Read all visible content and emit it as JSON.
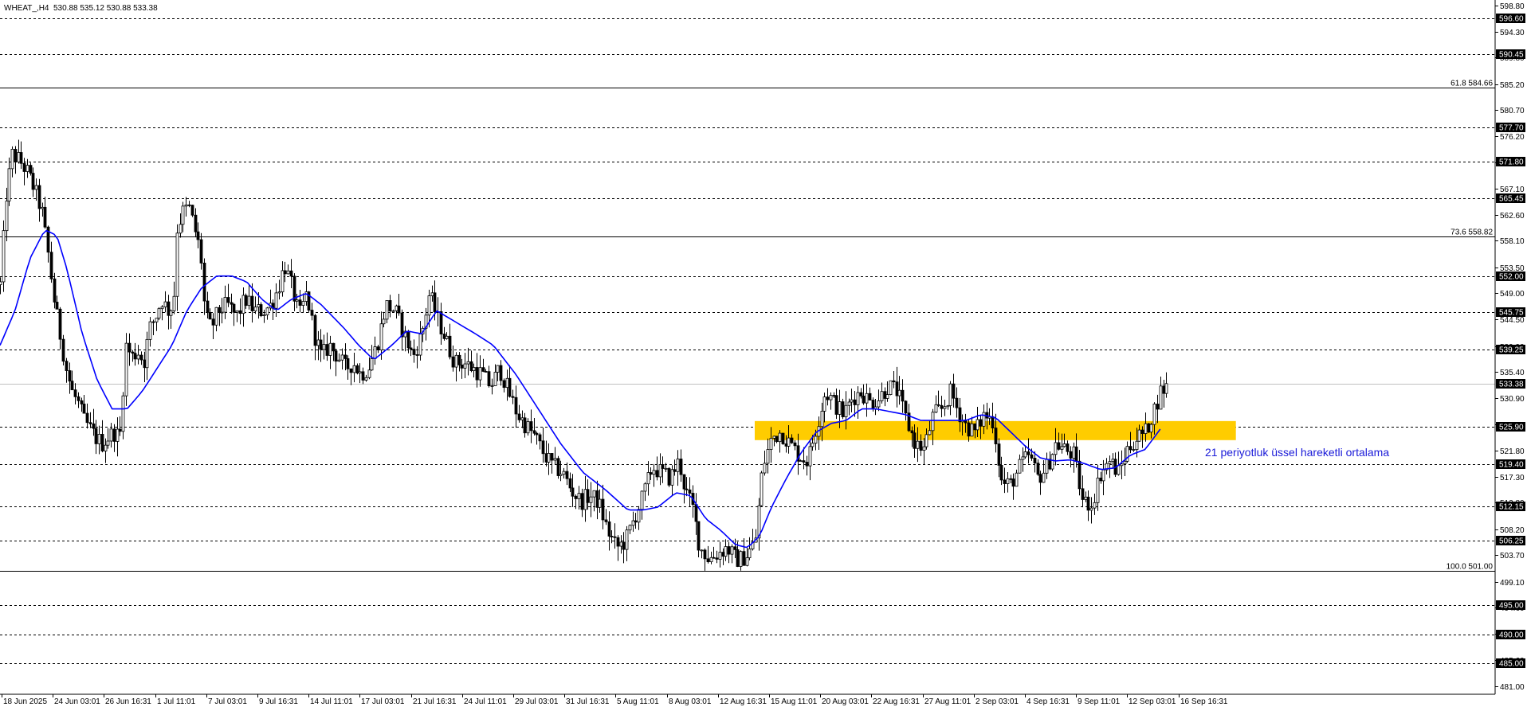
{
  "header": {
    "symbol": "WHEAT_,H4",
    "ohlc": "530.88 535.12 530.88 533.38"
  },
  "colors": {
    "background": "#ffffff",
    "grid": "#000000",
    "ema_line": "#0000ff",
    "zone": "#ffcc00",
    "annotation": "#1a1ad8",
    "price_label_bg": "#000000",
    "price_label_text": "#ffffff"
  },
  "chart_data": {
    "type": "candlestick",
    "title": "",
    "xlabel": "",
    "ylabel": "",
    "ylim": [
      481.0,
      598.8
    ],
    "grid": false,
    "scale_ticks": [
      "598.80",
      "594.30",
      "589.80",
      "585.20",
      "580.70",
      "576.20",
      "571.60",
      "567.10",
      "562.60",
      "558.10",
      "553.50",
      "549.00",
      "544.50",
      "539.90",
      "535.40",
      "530.90",
      "526.30",
      "521.80",
      "517.30",
      "512.80",
      "508.20",
      "503.70",
      "499.10",
      "494.60",
      "490.10",
      "485.60",
      "481.00"
    ],
    "x_tick_labels": [
      "18 Jun 2025",
      "24 Jun 03:01",
      "26 Jun 16:31",
      "1 Jul 11:01",
      "7 Jul 03:01",
      "9 Jul 16:31",
      "14 Jul 11:01",
      "17 Jul 03:01",
      "21 Jul 16:31",
      "24 Jul 11:01",
      "29 Jul 03:01",
      "31 Jul 16:31",
      "5 Aug 11:01",
      "8 Aug 03:01",
      "12 Aug 16:31",
      "15 Aug 11:01",
      "20 Aug 03:01",
      "22 Aug 16:31",
      "27 Aug 11:01",
      "2 Sep 03:01",
      "4 Sep 16:31",
      "9 Sep 11:01",
      "12 Sep 03:01",
      "16 Sep 16:31"
    ],
    "levels": [
      {
        "price": 596.6,
        "label": "596.60",
        "style": "dashed"
      },
      {
        "price": 590.45,
        "label": "590.45",
        "style": "dashed"
      },
      {
        "price": 577.7,
        "label": "577.70",
        "style": "dashed"
      },
      {
        "price": 571.8,
        "label": "571.80",
        "style": "dashed"
      },
      {
        "price": 565.45,
        "label": "565.45",
        "style": "dashed"
      },
      {
        "price": 552.0,
        "label": "552.00",
        "style": "dashed"
      },
      {
        "price": 545.75,
        "label": "545.75",
        "style": "dashed"
      },
      {
        "price": 539.25,
        "label": "539.25",
        "style": "dashed"
      },
      {
        "price": 525.9,
        "label": "525.90",
        "style": "dashed"
      },
      {
        "price": 519.4,
        "label": "519.40",
        "style": "dashed"
      },
      {
        "price": 512.15,
        "label": "512.15",
        "style": "dashed"
      },
      {
        "price": 506.25,
        "label": "506.25",
        "style": "dashed"
      },
      {
        "price": 495.0,
        "label": "495.00",
        "style": "dashed"
      },
      {
        "price": 490.0,
        "label": "490.00",
        "style": "dashed"
      },
      {
        "price": 485.0,
        "label": "485.00",
        "style": "dashed"
      }
    ],
    "fib_levels": [
      {
        "price": 584.66,
        "label": "61.8 584.66"
      },
      {
        "price": 558.82,
        "label": "73.6 558.82"
      },
      {
        "price": 501.0,
        "label": "100.0 501.00"
      }
    ],
    "current_price": {
      "price": 533.38,
      "label": "533.38"
    },
    "zone": {
      "top": 526.9,
      "bottom": 523.6,
      "x_start": 0.5048,
      "x_end": 0.8266
    },
    "annotation": {
      "text": "21 periyotluk üssel hareketli ortalama",
      "series": "ema"
    },
    "close_anchors": [
      [
        0.0,
        550.5
      ],
      [
        0.004,
        566.0
      ],
      [
        0.008,
        573.0
      ],
      [
        0.013,
        572.0
      ],
      [
        0.018,
        570.0
      ],
      [
        0.023,
        567.0
      ],
      [
        0.028,
        563.0
      ],
      [
        0.032,
        556.0
      ],
      [
        0.036,
        548.0
      ],
      [
        0.04,
        542.0
      ],
      [
        0.044,
        536.0
      ],
      [
        0.048,
        532.0
      ],
      [
        0.052,
        530.0
      ],
      [
        0.056,
        527.0
      ],
      [
        0.06,
        525.5
      ],
      [
        0.064,
        524.0
      ],
      [
        0.068,
        523.0
      ],
      [
        0.072,
        524.0
      ],
      [
        0.076,
        525.0
      ],
      [
        0.08,
        524.0
      ],
      [
        0.084,
        540.0
      ],
      [
        0.088,
        538.0
      ],
      [
        0.092,
        539.0
      ],
      [
        0.096,
        537.0
      ],
      [
        0.1,
        543.0
      ],
      [
        0.104,
        545.0
      ],
      [
        0.108,
        548.0
      ],
      [
        0.112,
        546.0
      ],
      [
        0.116,
        547.0
      ],
      [
        0.118,
        560.0
      ],
      [
        0.122,
        563.0
      ],
      [
        0.126,
        564.0
      ],
      [
        0.13,
        560.0
      ],
      [
        0.134,
        556.0
      ],
      [
        0.137,
        545.0
      ],
      [
        0.141,
        543.0
      ],
      [
        0.146,
        546.0
      ],
      [
        0.152,
        547.0
      ],
      [
        0.158,
        545.0
      ],
      [
        0.164,
        548.0
      ],
      [
        0.17,
        546.0
      ],
      [
        0.176,
        546.0
      ],
      [
        0.181,
        547.0
      ],
      [
        0.186,
        550.0
      ],
      [
        0.19,
        554.0
      ],
      [
        0.195,
        550.0
      ],
      [
        0.2,
        545.0
      ],
      [
        0.205,
        549.0
      ],
      [
        0.21,
        542.0
      ],
      [
        0.215,
        538.0
      ],
      [
        0.22,
        540.0
      ],
      [
        0.226,
        538.0
      ],
      [
        0.231,
        536.0
      ],
      [
        0.236,
        537.0
      ],
      [
        0.241,
        535.0
      ],
      [
        0.246,
        536.0
      ],
      [
        0.252,
        540.0
      ],
      [
        0.258,
        547.0
      ],
      [
        0.264,
        546.0
      ],
      [
        0.27,
        542.0
      ],
      [
        0.276,
        538.0
      ],
      [
        0.282,
        542.0
      ],
      [
        0.287,
        549.0
      ],
      [
        0.292,
        545.0
      ],
      [
        0.298,
        541.0
      ],
      [
        0.304,
        537.0
      ],
      [
        0.31,
        537.0
      ],
      [
        0.316,
        536.0
      ],
      [
        0.322,
        535.0
      ],
      [
        0.328,
        533.0
      ],
      [
        0.334,
        536.0
      ],
      [
        0.34,
        532.0
      ],
      [
        0.346,
        528.0
      ],
      [
        0.352,
        526.0
      ],
      [
        0.358,
        524.0
      ],
      [
        0.364,
        521.0
      ],
      [
        0.37,
        519.0
      ],
      [
        0.376,
        518.0
      ],
      [
        0.382,
        515.0
      ],
      [
        0.388,
        513.0
      ],
      [
        0.394,
        514.0
      ],
      [
        0.4,
        513.0
      ],
      [
        0.406,
        508.0
      ],
      [
        0.412,
        505.0
      ],
      [
        0.418,
        506.0
      ],
      [
        0.424,
        510.0
      ],
      [
        0.43,
        514.0
      ],
      [
        0.436,
        519.0
      ],
      [
        0.442,
        518.0
      ],
      [
        0.448,
        517.0
      ],
      [
        0.454,
        520.0
      ],
      [
        0.458,
        515.0
      ],
      [
        0.463,
        512.0
      ],
      [
        0.468,
        505.0
      ],
      [
        0.474,
        503.0
      ],
      [
        0.48,
        504.0
      ],
      [
        0.486,
        505.0
      ],
      [
        0.492,
        503.0
      ],
      [
        0.496,
        503.0
      ],
      [
        0.5,
        504.0
      ],
      [
        0.505,
        506.0
      ],
      [
        0.51,
        519.0
      ],
      [
        0.516,
        524.0
      ],
      [
        0.522,
        525.0
      ],
      [
        0.528,
        523.0
      ],
      [
        0.534,
        521.0
      ],
      [
        0.54,
        520.0
      ],
      [
        0.546,
        526.0
      ],
      [
        0.552,
        532.0
      ],
      [
        0.558,
        530.0
      ],
      [
        0.564,
        528.0
      ],
      [
        0.57,
        531.0
      ],
      [
        0.576,
        532.0
      ],
      [
        0.582,
        530.0
      ],
      [
        0.588,
        531.0
      ],
      [
        0.594,
        533.0
      ],
      [
        0.6,
        532.0
      ],
      [
        0.606,
        527.0
      ],
      [
        0.612,
        523.0
      ],
      [
        0.618,
        522.0
      ],
      [
        0.624,
        528.0
      ],
      [
        0.63,
        529.0
      ],
      [
        0.636,
        532.0
      ],
      [
        0.64,
        529.0
      ],
      [
        0.646,
        526.0
      ],
      [
        0.652,
        525.0
      ],
      [
        0.658,
        528.0
      ],
      [
        0.664,
        527.0
      ],
      [
        0.67,
        516.0
      ],
      [
        0.676,
        516.0
      ],
      [
        0.682,
        519.0
      ],
      [
        0.688,
        521.0
      ],
      [
        0.694,
        517.0
      ],
      [
        0.7,
        519.0
      ],
      [
        0.706,
        523.0
      ],
      [
        0.712,
        522.0
      ],
      [
        0.718,
        521.0
      ],
      [
        0.724,
        513.0
      ],
      [
        0.73,
        512.5
      ],
      [
        0.736,
        518.0
      ],
      [
        0.742,
        520.0
      ],
      [
        0.748,
        518.0
      ],
      [
        0.754,
        522.0
      ],
      [
        0.76,
        524.0
      ],
      [
        0.766,
        525.0
      ],
      [
        0.772,
        529.0
      ],
      [
        0.776,
        532.0
      ],
      [
        0.78,
        533.0
      ]
    ],
    "ema_anchors": [
      [
        0.0,
        540.0
      ],
      [
        0.01,
        546.0
      ],
      [
        0.02,
        555.0
      ],
      [
        0.03,
        560.0
      ],
      [
        0.038,
        559.0
      ],
      [
        0.045,
        553.0
      ],
      [
        0.055,
        542.0
      ],
      [
        0.065,
        534.0
      ],
      [
        0.075,
        529.0
      ],
      [
        0.085,
        529.0
      ],
      [
        0.095,
        532.0
      ],
      [
        0.105,
        536.0
      ],
      [
        0.115,
        540.0
      ],
      [
        0.125,
        546.0
      ],
      [
        0.135,
        550.0
      ],
      [
        0.145,
        552.0
      ],
      [
        0.155,
        552.0
      ],
      [
        0.165,
        551.0
      ],
      [
        0.175,
        548.0
      ],
      [
        0.185,
        546.0
      ],
      [
        0.195,
        548.0
      ],
      [
        0.205,
        549.0
      ],
      [
        0.215,
        547.0
      ],
      [
        0.23,
        543.0
      ],
      [
        0.24,
        540.0
      ],
      [
        0.25,
        537.5
      ],
      [
        0.262,
        540.0
      ],
      [
        0.272,
        542.5
      ],
      [
        0.282,
        542.0
      ],
      [
        0.292,
        546.0
      ],
      [
        0.305,
        544.0
      ],
      [
        0.318,
        542.0
      ],
      [
        0.33,
        540.0
      ],
      [
        0.345,
        535.0
      ],
      [
        0.36,
        529.0
      ],
      [
        0.375,
        523.0
      ],
      [
        0.39,
        518.0
      ],
      [
        0.405,
        515.0
      ],
      [
        0.42,
        511.5
      ],
      [
        0.43,
        511.5
      ],
      [
        0.44,
        512.0
      ],
      [
        0.452,
        514.5
      ],
      [
        0.462,
        514.0
      ],
      [
        0.472,
        510.0
      ],
      [
        0.482,
        508.0
      ],
      [
        0.492,
        505.5
      ],
      [
        0.5,
        505.0
      ],
      [
        0.508,
        507.0
      ],
      [
        0.516,
        512.0
      ],
      [
        0.526,
        517.0
      ],
      [
        0.536,
        521.5
      ],
      [
        0.546,
        525.0
      ],
      [
        0.556,
        526.5
      ],
      [
        0.566,
        527.0
      ],
      [
        0.576,
        529.0
      ],
      [
        0.586,
        529.0
      ],
      [
        0.596,
        528.5
      ],
      [
        0.606,
        528.0
      ],
      [
        0.616,
        527.0
      ],
      [
        0.626,
        527.0
      ],
      [
        0.636,
        527.0
      ],
      [
        0.646,
        527.0
      ],
      [
        0.656,
        528.0
      ],
      [
        0.666,
        527.5
      ],
      [
        0.676,
        525.0
      ],
      [
        0.686,
        522.5
      ],
      [
        0.696,
        520.5
      ],
      [
        0.706,
        520.0
      ],
      [
        0.716,
        520.2
      ],
      [
        0.726,
        519.5
      ],
      [
        0.736,
        518.5
      ],
      [
        0.746,
        518.8
      ],
      [
        0.756,
        521.0
      ],
      [
        0.766,
        522.0
      ],
      [
        0.776,
        525.5
      ]
    ]
  }
}
